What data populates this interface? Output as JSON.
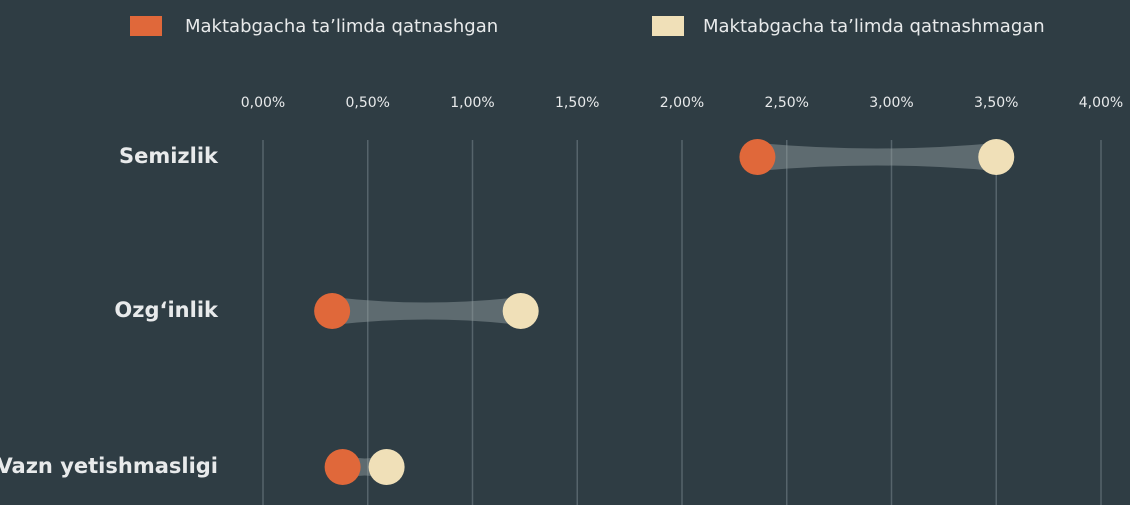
{
  "chart_data": {
    "type": "dumbbell",
    "categories": [
      "Semizlik",
      "Ozg‘inlik",
      "Vazn yetishmasligi"
    ],
    "series": [
      {
        "name": "Maktabgacha ta’limda qatnashgan",
        "color": "#e0683a",
        "values": [
          2.36,
          0.33,
          0.38
        ]
      },
      {
        "name": "Maktabgacha ta’limda qatnashmagan",
        "color": "#f0e0b8",
        "values": [
          3.5,
          1.23,
          0.59
        ]
      }
    ],
    "xlim": [
      0,
      4
    ],
    "xticks": [
      {
        "value": 0,
        "label": "0,00%"
      },
      {
        "value": 0.5,
        "label": "0,50%"
      },
      {
        "value": 1,
        "label": "1,00%"
      },
      {
        "value": 1.5,
        "label": "1,50%"
      },
      {
        "value": 2,
        "label": "2,00%"
      },
      {
        "value": 2.5,
        "label": "2,50%"
      },
      {
        "value": 3,
        "label": "3,00%"
      },
      {
        "value": 3.5,
        "label": "3,50%"
      },
      {
        "value": 4,
        "label": "4,00%"
      }
    ],
    "grid": true,
    "legend": "top"
  }
}
